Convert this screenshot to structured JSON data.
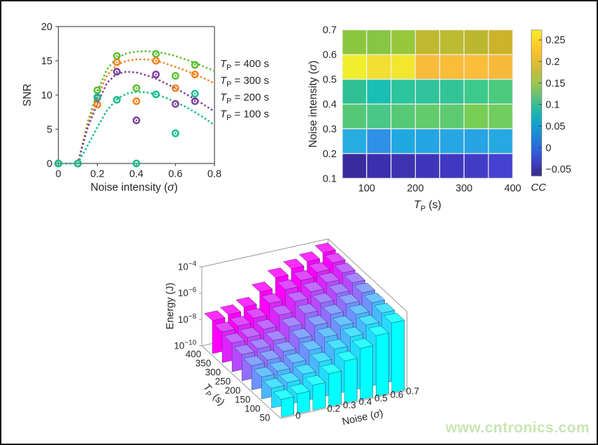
{
  "watermark": {
    "text": "www.cntronics.com",
    "color": "#c7e5b3"
  },
  "chart_data": [
    {
      "id": "snr-vs-noise",
      "type": "scatter",
      "title": "",
      "xlabel": "Noise intensity (σ)",
      "ylabel": "SNR",
      "xlim": [
        0,
        0.8
      ],
      "ylim": [
        0,
        20
      ],
      "xticks": [
        "0",
        "0.2",
        "0.4",
        "0.6",
        "0.8"
      ],
      "yticks": [
        "0",
        "5",
        "10",
        "15",
        "20"
      ],
      "grid": false,
      "legend_position": "right-outside",
      "x": [
        0,
        0.1,
        0.2,
        0.3,
        0.4,
        0.5,
        0.6,
        0.7
      ],
      "fit_x": [
        0,
        0.05,
        0.1,
        0.15,
        0.2,
        0.25,
        0.3,
        0.35,
        0.4,
        0.45,
        0.5,
        0.55,
        0.6,
        0.65,
        0.7,
        0.75,
        0.8
      ],
      "series": [
        {
          "name": "TP = 400 s",
          "legend": {
            "prefix": "T",
            "sub": "P",
            "suffix": " = 400 s"
          },
          "color": "#5abf2f",
          "snr": [
            0,
            0,
            10.7,
            15.7,
            11.0,
            16.0,
            12.8,
            14.4
          ],
          "fit": [
            0,
            0,
            0,
            6.0,
            10.5,
            13.8,
            15.4,
            16.1,
            16.35,
            16.4,
            16.3,
            16.05,
            15.7,
            15.2,
            14.7,
            14.1,
            13.5
          ]
        },
        {
          "name": "TP = 300 s",
          "legend": {
            "prefix": "T",
            "sub": "P",
            "suffix": " = 300 s"
          },
          "color": "#f5821f",
          "snr": [
            0,
            0,
            8.6,
            14.8,
            9.1,
            15.0,
            11.0,
            13.0
          ],
          "fit": [
            0,
            0,
            0,
            5.6,
            9.8,
            12.9,
            14.4,
            15.0,
            15.2,
            15.2,
            15.0,
            14.6,
            14.1,
            13.6,
            13.0,
            12.4,
            11.7
          ]
        },
        {
          "name": "TP = 200 s",
          "legend": {
            "prefix": "T",
            "sub": "P",
            "suffix": " = 200 s"
          },
          "color": "#7e3f9d",
          "snr": [
            0,
            0,
            9.6,
            13.4,
            6.3,
            13.0,
            8.7,
            9.1
          ],
          "fit": [
            0,
            0,
            0,
            5.2,
            8.8,
            11.8,
            13.1,
            13.4,
            13.3,
            12.9,
            12.4,
            11.7,
            11.0,
            10.2,
            9.4,
            8.5,
            7.6
          ]
        },
        {
          "name": "TP = 100 s",
          "legend": {
            "prefix": "T",
            "sub": "P",
            "suffix": " = 100 s"
          },
          "color": "#15bd8c",
          "snr": [
            0,
            0,
            9.7,
            9.3,
            0,
            10.1,
            4.4,
            10.2
          ],
          "fit": [
            0,
            0,
            0,
            2.6,
            5.3,
            7.8,
            9.4,
            10.2,
            10.45,
            10.4,
            10.1,
            9.6,
            9.0,
            8.3,
            7.5,
            6.6,
            5.6
          ]
        }
      ]
    },
    {
      "id": "cc-heatmap",
      "type": "heatmap",
      "xlabel": {
        "prefix": "T",
        "sub": "P",
        "suffix": " (s)"
      },
      "ylabel": "Noise intensity (σ)",
      "x_edges": [
        50,
        100,
        150,
        200,
        250,
        300,
        350,
        400
      ],
      "y_edges": [
        0.1,
        0.2,
        0.3,
        0.4,
        0.5,
        0.6,
        0.7
      ],
      "xtick_labels": [
        "100",
        "200",
        "300",
        "400"
      ],
      "ytick_labels": [
        "0.1",
        "0.2",
        "0.3",
        "0.4",
        "0.5",
        "0.6",
        "0.7"
      ],
      "rows_top_to_bottom": [
        {
          "y_range": "0.6-0.7",
          "cc": [
            0.16,
            0.16,
            0.17,
            0.2,
            0.2,
            0.2,
            0.21
          ],
          "colors": [
            "#8cc63f",
            "#88c544",
            "#97c83c",
            "#c0b92f",
            "#bcbb32",
            "#bdb72f",
            "#ccb32a"
          ]
        },
        {
          "y_range": "0.5-0.6",
          "cc": [
            0.25,
            0.24,
            0.25,
            0.22,
            0.22,
            0.22,
            0.22
          ],
          "colors": [
            "#f1ee2b",
            "#f2df31",
            "#f1e72e",
            "#f8bb3a",
            "#f9bd3a",
            "#fabe3b",
            "#f9ba3c"
          ]
        },
        {
          "y_range": "0.4-0.5",
          "cc": [
            0.11,
            0.1,
            0.12,
            0.12,
            0.12,
            0.13,
            0.13
          ],
          "colors": [
            "#2ec094",
            "#19bfb2",
            "#2dc59c",
            "#30c39c",
            "#33c495",
            "#3ec98c",
            "#4cca7e"
          ]
        },
        {
          "y_range": "0.3-0.4",
          "cc": [
            0.14,
            0.13,
            0.14,
            0.14,
            0.14,
            0.15,
            0.15
          ],
          "colors": [
            "#55c877",
            "#49c887",
            "#57c975",
            "#62cb6b",
            "#5eca70",
            "#78cd55",
            "#70cd5e"
          ]
        },
        {
          "y_range": "0.2-0.3",
          "cc": [
            0.05,
            0.04,
            0.05,
            0.05,
            0.05,
            0.05,
            0.05
          ],
          "colors": [
            "#25ace0",
            "#2f90e8",
            "#20a9e1",
            "#25a5e4",
            "#26a7e3",
            "#28a3e4",
            "#26a9e1"
          ]
        },
        {
          "y_range": "0.1-0.2",
          "cc": [
            -0.05,
            -0.04,
            -0.04,
            -0.04,
            -0.03,
            -0.03,
            -0.03
          ],
          "colors": [
            "#392a9e",
            "#3c2fae",
            "#3e32b2",
            "#3f35bb",
            "#4038c0",
            "#413cc6",
            "#4641d2"
          ]
        }
      ],
      "colorbar": {
        "label": "CC",
        "min": -0.066,
        "max": 0.273,
        "tick_values": [
          -0.05,
          0,
          0.05,
          0.1,
          0.15,
          0.2,
          0.25
        ],
        "tick_labels": [
          "−0.05",
          "0",
          "0.05",
          "0.1",
          "0.15",
          "0.2",
          "0.25"
        ],
        "gradient_bottom_to_top": [
          "#352a87",
          "#3e3fc2",
          "#2e63e0",
          "#1b87d6",
          "#0fa4ca",
          "#27b8a4",
          "#63c17c",
          "#9bc64f",
          "#c8bc3a",
          "#f2be30",
          "#fcce2b",
          "#f8ee27"
        ]
      }
    },
    {
      "id": "energy-bar3d",
      "type": "bar",
      "subtype": "bar3d",
      "xlabel": "Noise (σ)",
      "ylabel": {
        "prefix": "T",
        "sub": "P",
        "suffix": " (s)"
      },
      "zlabel": "Energy (J)",
      "zscale": "log",
      "zlim_exponents": [
        -10,
        -4
      ],
      "ztick_exponents": [
        -10,
        -8,
        -6,
        -4
      ],
      "noise_values": [
        0,
        0.1,
        0.2,
        0.3,
        0.4,
        0.5,
        0.6,
        0.7
      ],
      "noise_tick_shown": {
        "indices": [
          0,
          2,
          3,
          4,
          5,
          6,
          7
        ],
        "labels": [
          "0",
          "0.2",
          "0.3",
          "0.4",
          "0.5",
          "0.6",
          "0.7"
        ]
      },
      "tp_values": [
        50,
        100,
        150,
        200,
        250,
        300,
        350,
        400
      ],
      "tp_tick_labels": [
        "50",
        "100",
        "150",
        "200",
        "250",
        "300",
        "350",
        "400"
      ],
      "color_front_tp50": "#00ffff",
      "color_back_tp400": "#ff00ff",
      "energy_J_rows_tp50_to_tp400": [
        [
          2.2e-09,
          3.2e-09,
          7.9e-09,
          3.2e-08,
          1.6e-07,
          7.9e-07,
          4e-06,
          2e-05
        ],
        [
          3.2e-09,
          4.7e-09,
          1.1e-08,
          5e-08,
          2.6e-07,
          1.2e-06,
          5.2e-06,
          2.3e-05
        ],
        [
          4.7e-09,
          7e-09,
          1.6e-08,
          7.9e-08,
          4.3e-07,
          1.7e-06,
          6.7e-06,
          2.8e-05
        ],
        [
          6.9e-09,
          1e-08,
          2.4e-08,
          1.3e-07,
          6.9e-07,
          2.6e-06,
          8.7e-06,
          3.3e-05
        ],
        [
          1e-08,
          1.5e-08,
          3.4e-08,
          2e-07,
          1.1e-06,
          3.9e-06,
          1.1e-05,
          3.9e-05
        ],
        [
          1.5e-08,
          2.2e-08,
          4.9e-08,
          3.2e-07,
          1.9e-06,
          5.7e-06,
          1.5e-05,
          4.5e-05
        ],
        [
          2.2e-08,
          3.3e-08,
          7e-08,
          5e-07,
          3.1e-06,
          8.5e-06,
          1.9e-05,
          5.3e-05
        ],
        [
          3.2e-08,
          5e-08,
          1e-07,
          7.9e-07,
          5e-06,
          1.3e-05,
          2.5e-05,
          6.3e-05
        ]
      ]
    }
  ]
}
